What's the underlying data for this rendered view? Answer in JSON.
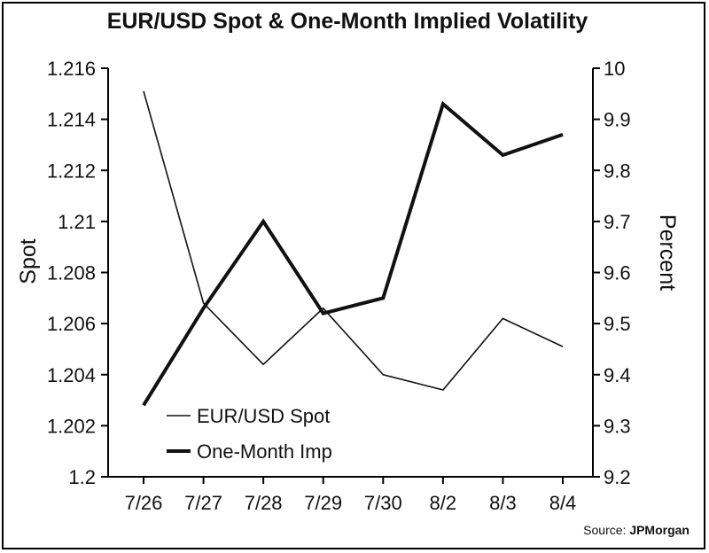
{
  "chart_data": {
    "type": "line",
    "title": "EUR/USD Spot & One-Month Implied Volatility",
    "categories": [
      "7/26",
      "7/27",
      "7/28",
      "7/29",
      "7/30",
      "8/2",
      "8/3",
      "8/4"
    ],
    "series": [
      {
        "name": "EUR/USD Spot",
        "axis": "left",
        "values": [
          1.2151,
          1.2068,
          1.2044,
          1.2066,
          1.204,
          1.2034,
          1.2062,
          1.2051
        ],
        "color": "#111111",
        "line_weight": "thin"
      },
      {
        "name": "One-Month Imp",
        "axis": "right",
        "values": [
          9.34,
          9.53,
          9.7,
          9.52,
          9.55,
          9.93,
          9.83,
          9.87
        ],
        "color": "#111111",
        "line_weight": "thick"
      }
    ],
    "left_axis": {
      "label": "Spot",
      "range": [
        1.2,
        1.216
      ],
      "ticks": [
        "1.2",
        "1.202",
        "1.204",
        "1.206",
        "1.208",
        "1.21",
        "1.212",
        "1.214",
        "1.216"
      ]
    },
    "right_axis": {
      "label": "Percent",
      "range": [
        9.2,
        10
      ],
      "ticks": [
        "9.2",
        "9.3",
        "9.4",
        "9.5",
        "9.6",
        "9.7",
        "9.8",
        "9.9",
        "10"
      ]
    },
    "legend": {
      "position": "bottom-left",
      "entries": [
        "EUR/USD Spot",
        "One-Month Imp"
      ]
    },
    "grid": false,
    "source_prefix": "Source:",
    "source_name": "JPMorgan"
  }
}
